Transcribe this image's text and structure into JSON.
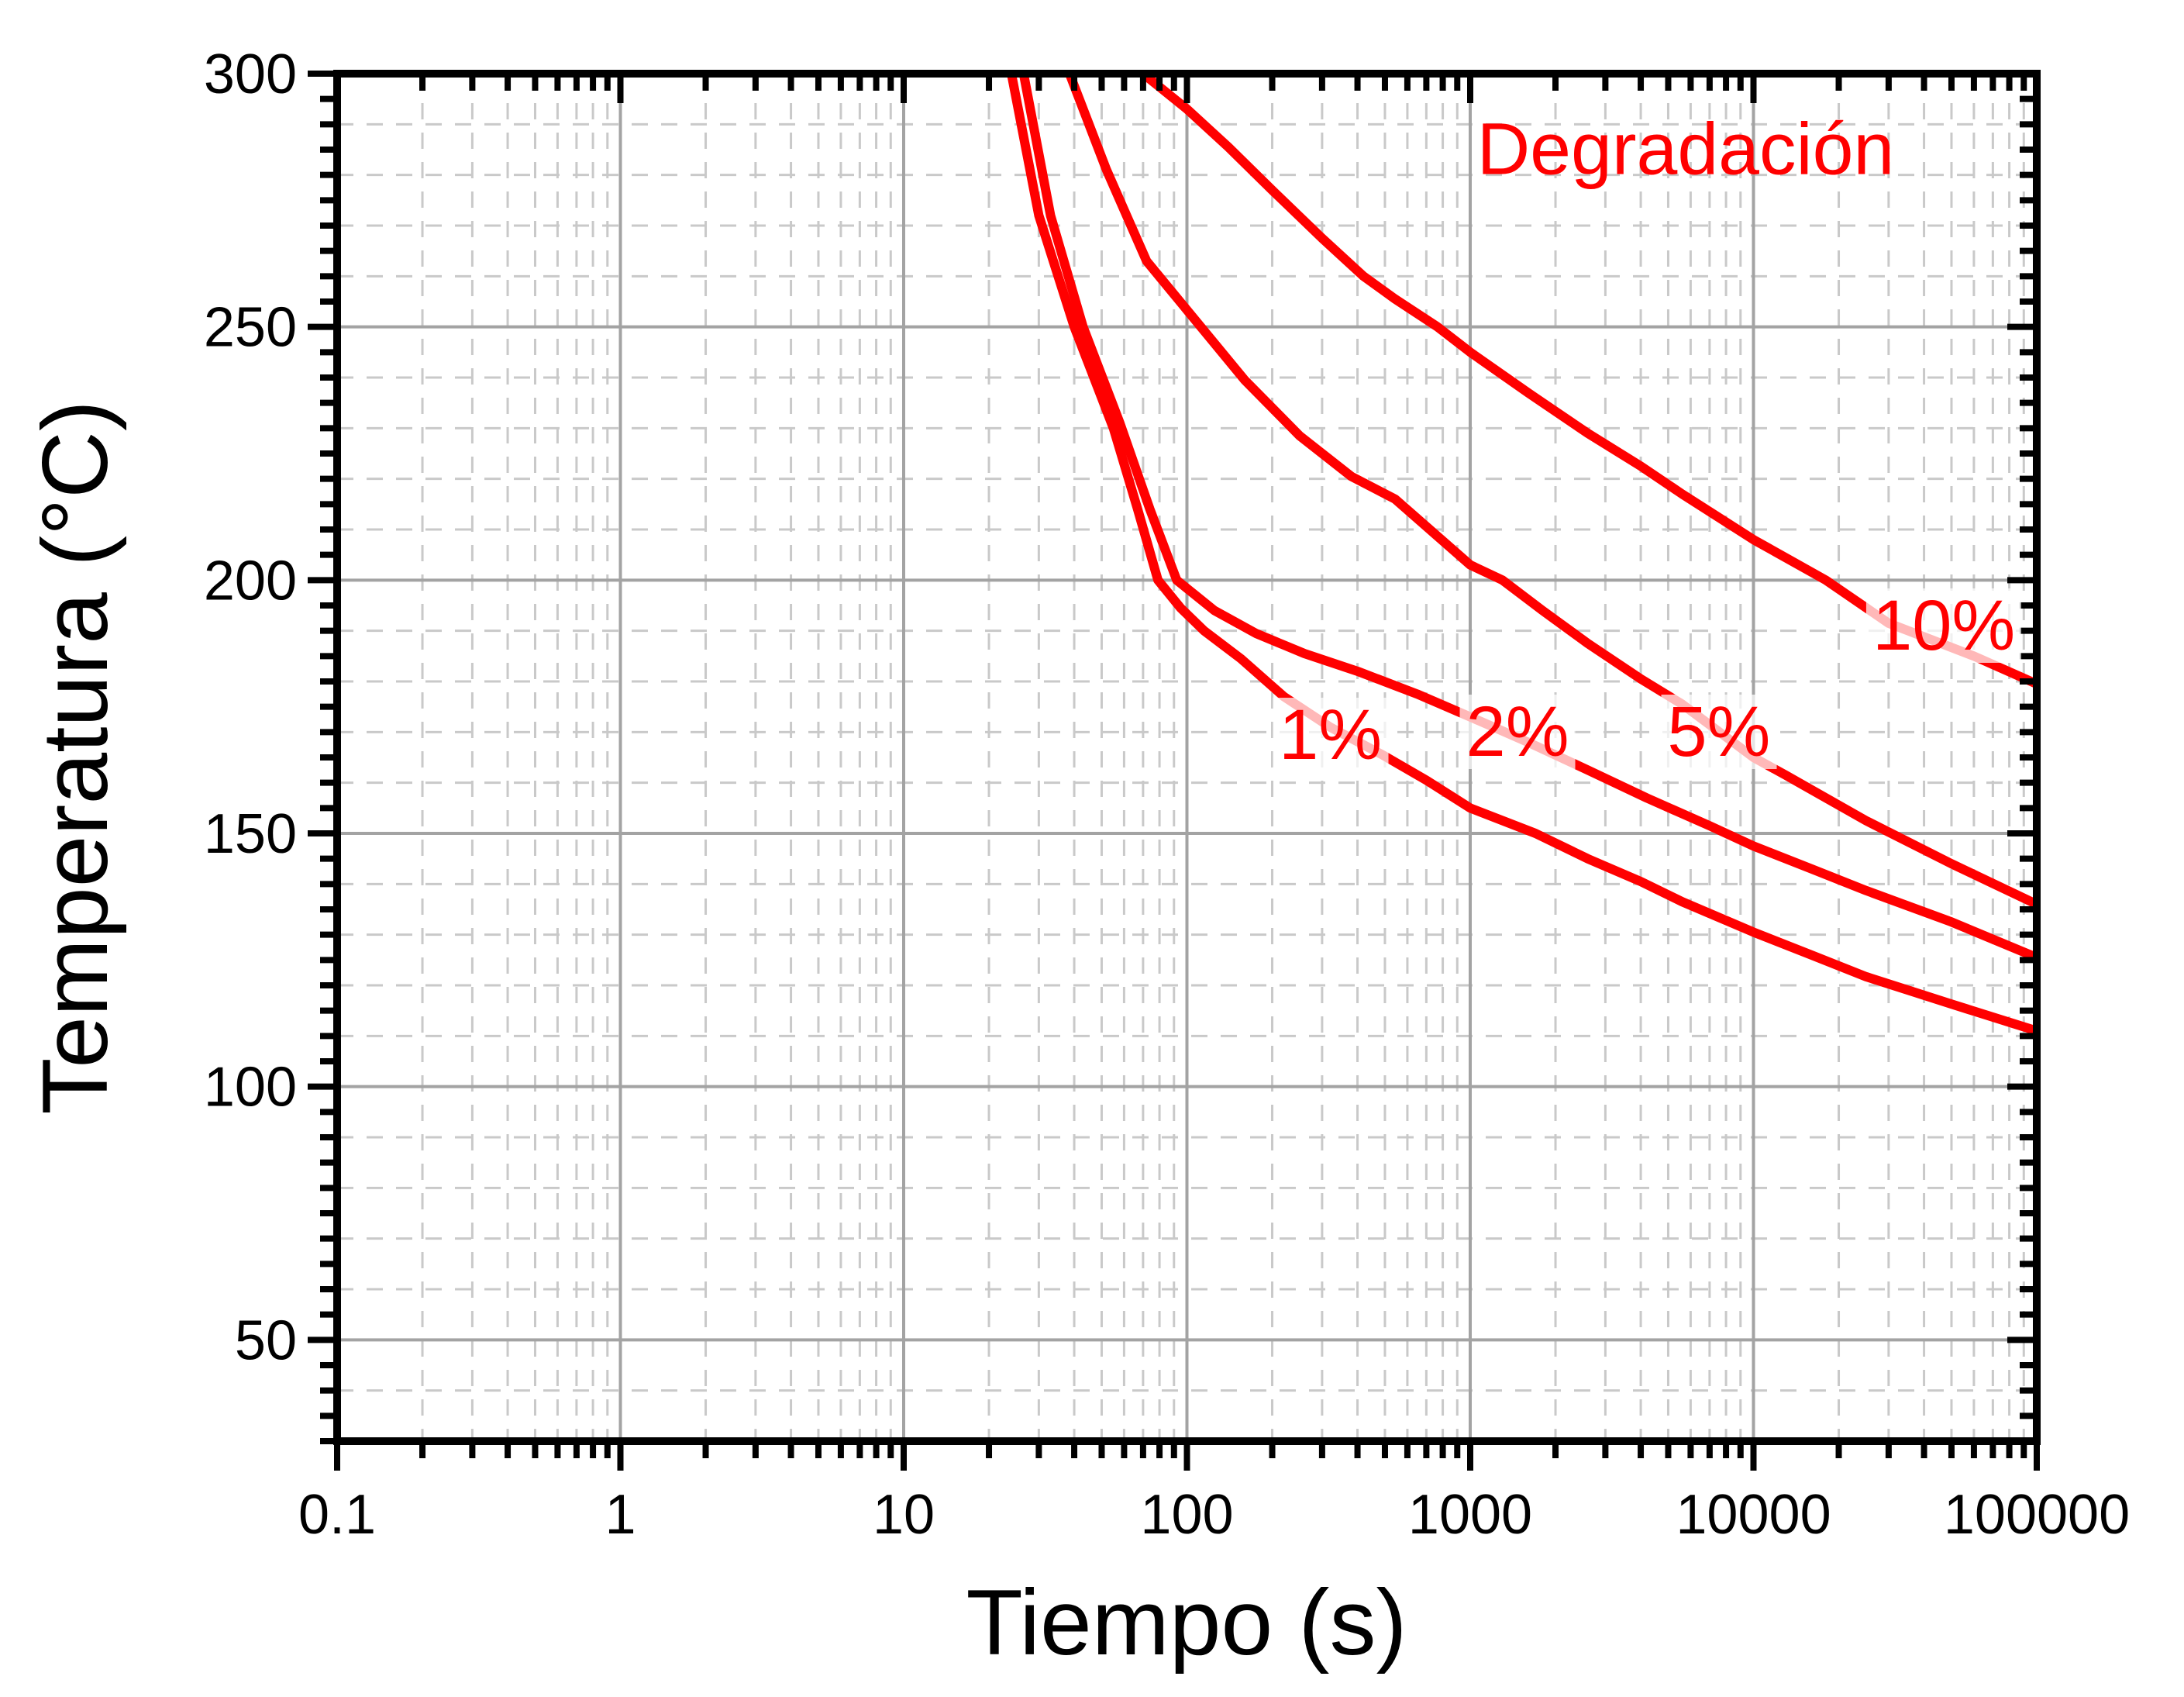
{
  "page": {
    "background": "#ffffff"
  },
  "chart_data": {
    "type": "line",
    "title": "",
    "xlabel": "Tiempo (s)",
    "ylabel": "Temperatura (°C)",
    "x_scale": "log",
    "xlim": [
      0.1,
      100000
    ],
    "ylim": [
      30,
      300
    ],
    "x_ticks": {
      "major": [
        0.1,
        1,
        10,
        100,
        1000,
        10000,
        100000
      ],
      "labels": [
        "0.1",
        "1",
        "10",
        "100",
        "1000",
        "10000",
        "100000"
      ]
    },
    "y_ticks": {
      "major": [
        50,
        100,
        150,
        200,
        250,
        300
      ],
      "labels": [
        "50",
        "100",
        "150",
        "200",
        "250",
        "300"
      ],
      "minor_step": 5
    },
    "grid": {
      "major_color": "#a3a3a3",
      "minor_color": "#c9c9c9",
      "minor_dashed": true,
      "h_minor_step": 10
    },
    "axis_color": "#000000",
    "series_color": "#ff0000",
    "series": [
      {
        "name": "1%",
        "points": [
          [
            24,
            300
          ],
          [
            30,
            272
          ],
          [
            40,
            250
          ],
          [
            55,
            230
          ],
          [
            67,
            214
          ],
          [
            79,
            200
          ],
          [
            95,
            194.5
          ],
          [
            115,
            190
          ],
          [
            155,
            184.5
          ],
          [
            220,
            177
          ],
          [
            320,
            171
          ],
          [
            490,
            165.5
          ],
          [
            700,
            160.5
          ],
          [
            1000,
            155
          ],
          [
            1700,
            150
          ],
          [
            2600,
            145
          ],
          [
            4000,
            140.5
          ],
          [
            5600,
            136.5
          ],
          [
            10000,
            130.5
          ],
          [
            16000,
            126
          ],
          [
            25000,
            121.7
          ],
          [
            50000,
            116.3
          ],
          [
            100000,
            111
          ]
        ]
      },
      {
        "name": "2%",
        "points": [
          [
            26.5,
            300
          ],
          [
            33,
            272
          ],
          [
            43,
            250
          ],
          [
            58,
            231
          ],
          [
            74,
            214
          ],
          [
            92,
            200
          ],
          [
            125,
            194
          ],
          [
            175,
            189.5
          ],
          [
            260,
            185.5
          ],
          [
            400,
            182
          ],
          [
            650,
            177.5
          ],
          [
            1000,
            173
          ],
          [
            1600,
            168
          ],
          [
            2600,
            162.5
          ],
          [
            4200,
            157
          ],
          [
            7000,
            151.5
          ],
          [
            10000,
            147.5
          ],
          [
            16000,
            143
          ],
          [
            25000,
            138.7
          ],
          [
            50000,
            132.5
          ],
          [
            100000,
            125.5
          ]
        ]
      },
      {
        "name": "5%",
        "points": [
          [
            38.5,
            300
          ],
          [
            52,
            281
          ],
          [
            72,
            263
          ],
          [
            112,
            250
          ],
          [
            160,
            239.5
          ],
          [
            250,
            228.5
          ],
          [
            380,
            220.5
          ],
          [
            543,
            216
          ],
          [
            1000,
            203
          ],
          [
            1300,
            200
          ],
          [
            1800,
            194
          ],
          [
            2600,
            187.5
          ],
          [
            4000,
            180.5
          ],
          [
            5600,
            175.5
          ],
          [
            10000,
            165
          ],
          [
            13000,
            161.5
          ],
          [
            25000,
            152.5
          ],
          [
            50000,
            144
          ],
          [
            100000,
            136
          ]
        ]
      },
      {
        "name": "10%",
        "points": [
          [
            70,
            300
          ],
          [
            100,
            293
          ],
          [
            140,
            285.5
          ],
          [
            200,
            277
          ],
          [
            300,
            267.5
          ],
          [
            420,
            260
          ],
          [
            543,
            255.5
          ],
          [
            767,
            250
          ],
          [
            1000,
            245
          ],
          [
            1600,
            237
          ],
          [
            2600,
            229
          ],
          [
            4000,
            222.5
          ],
          [
            5600,
            217
          ],
          [
            10000,
            208
          ],
          [
            18000,
            200
          ],
          [
            30000,
            191.5
          ],
          [
            60000,
            185
          ],
          [
            100000,
            179.5
          ]
        ]
      }
    ],
    "annotations": [
      {
        "id": "title",
        "text": "Degradación",
        "t": 5760,
        "T": 285,
        "halo": false
      },
      {
        "id": "label-1",
        "text": "1%",
        "t": 321,
        "T": 169.5,
        "halo": true
      },
      {
        "id": "label-2",
        "text": "2%",
        "t": 1469,
        "T": 170,
        "halo": true
      },
      {
        "id": "label-5",
        "text": "5%",
        "t": 7550,
        "T": 170,
        "halo": true
      },
      {
        "id": "label-10",
        "text": "10%",
        "t": 47000,
        "T": 191,
        "halo": true
      }
    ],
    "legend": {
      "visible": false
    }
  }
}
